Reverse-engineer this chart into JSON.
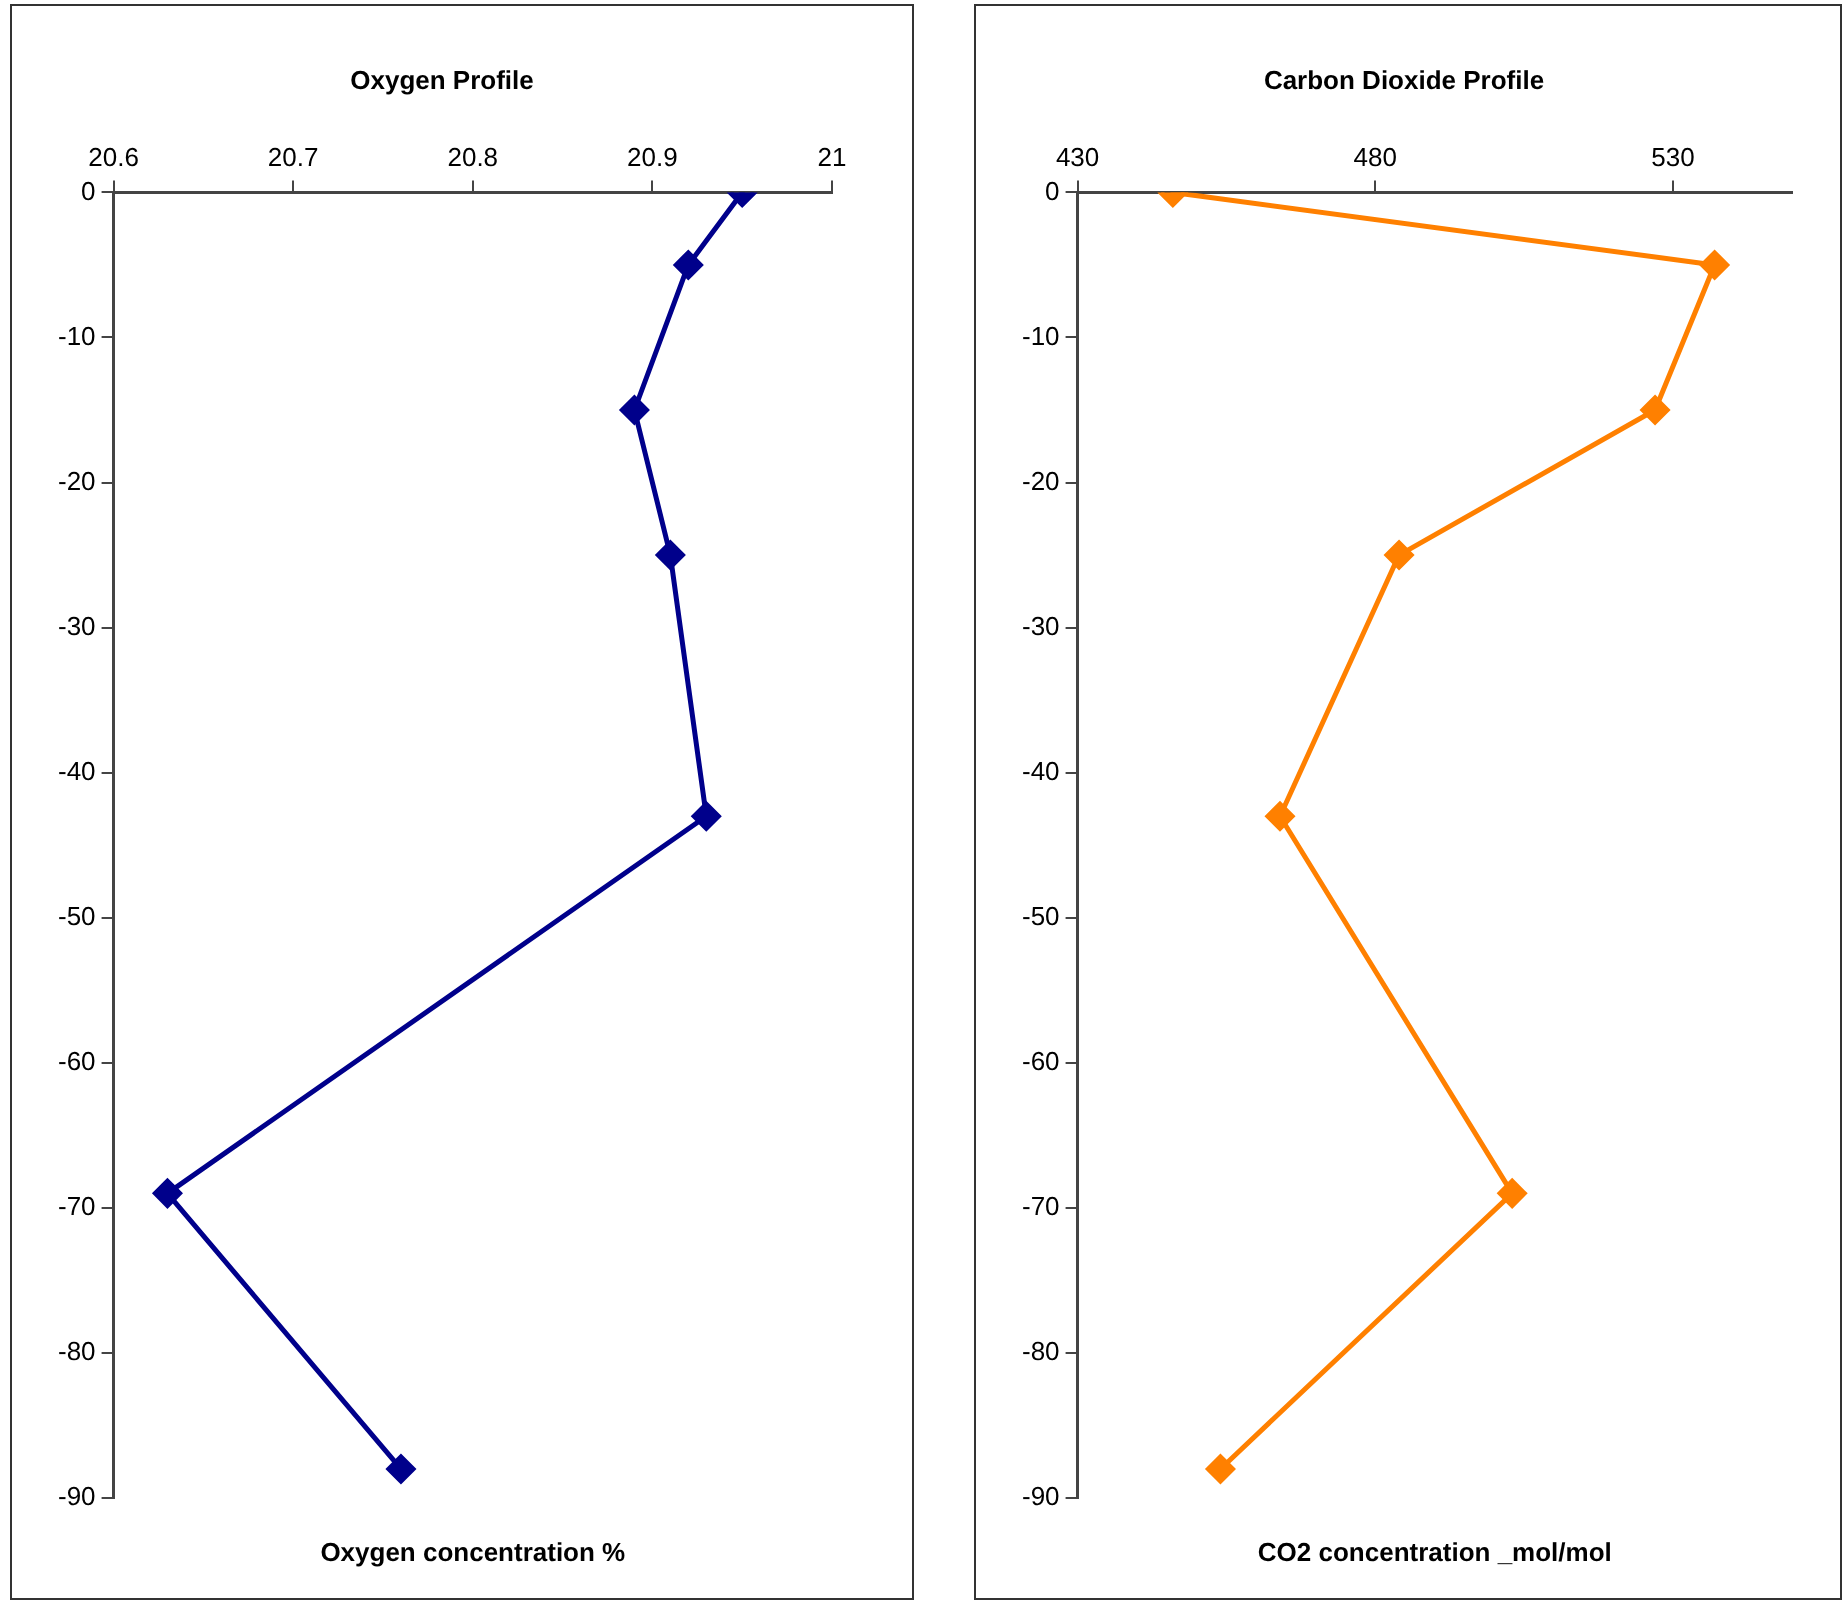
{
  "chart_data": [
    {
      "type": "line",
      "title": "Oxygen Profile",
      "xlabel": "Oxygen concentration %",
      "series": [
        {
          "color": "#00008b",
          "x": [
            20.95,
            20.92,
            20.89,
            20.91,
            20.93,
            20.63,
            20.76
          ],
          "values": [
            0,
            -5,
            -15,
            -25,
            -43,
            -69,
            -88
          ]
        }
      ],
      "xlim": [
        20.6,
        21
      ],
      "xticks": [
        20.6,
        20.7,
        20.8,
        20.9,
        21
      ],
      "ylim": [
        -90,
        0
      ],
      "yticks": [
        0,
        -10,
        -20,
        -30,
        -40,
        -50,
        -60,
        -70,
        -80,
        -90
      ],
      "grid": false,
      "legend": false,
      "marker": "diamond",
      "line_style": "solid"
    },
    {
      "type": "line",
      "title": "Carbon Dioxide Profile",
      "xlabel": "CO2 concentration _mol/mol",
      "series": [
        {
          "color": "#ff8000",
          "x": [
            446,
            537,
            527,
            484,
            464,
            503,
            454
          ],
          "values": [
            0,
            -5,
            -15,
            -25,
            -43,
            -69,
            -88
          ]
        }
      ],
      "xlim": [
        430,
        550
      ],
      "xticks": [
        430,
        480,
        530
      ],
      "ylim": [
        -90,
        0
      ],
      "yticks": [
        0,
        -10,
        -20,
        -30,
        -40,
        -50,
        -60,
        -70,
        -80,
        -90
      ],
      "grid": false,
      "legend": false,
      "marker": "diamond",
      "line_style": "solid"
    }
  ]
}
